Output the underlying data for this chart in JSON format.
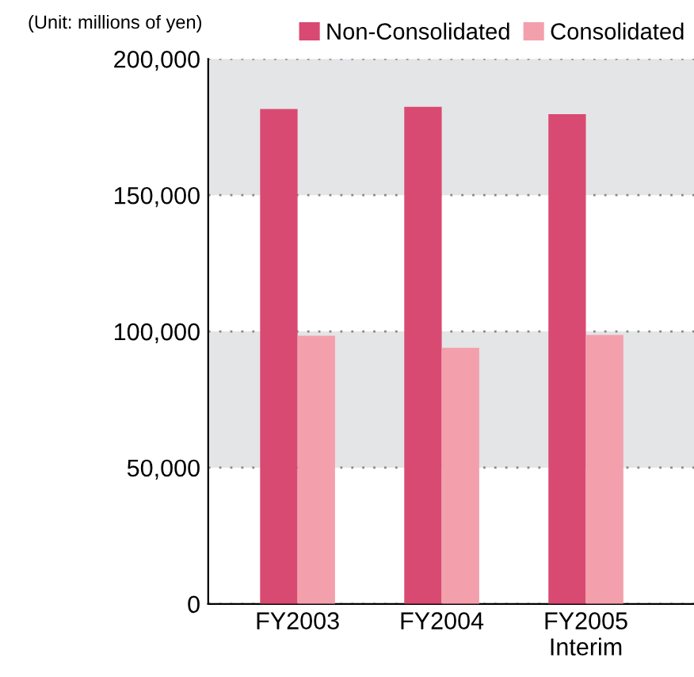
{
  "chart_data": {
    "type": "bar",
    "categories": [
      "FY2003",
      "FY2004",
      "FY2005\nInterim"
    ],
    "series": [
      {
        "name": "Non-Consolidated",
        "color": "#d94a72",
        "values": [
          181600,
          182400,
          179700
        ]
      },
      {
        "name": "Consolidated",
        "color": "#f3a0ac",
        "values": [
          98400,
          94000,
          98700
        ]
      }
    ],
    "ylim": [
      0,
      200000
    ],
    "yticks": [
      {
        "value": 0,
        "label": "0"
      },
      {
        "value": 50000,
        "label": "50,000"
      },
      {
        "value": 100000,
        "label": "100,000"
      },
      {
        "value": 150000,
        "label": "150,000"
      },
      {
        "value": 200000,
        "label": "200,000"
      }
    ],
    "grid": "y",
    "legend": "top right",
    "bands": [
      {
        "axis": "y",
        "from": 50000,
        "to": 100000,
        "color": "#e4e5e7"
      },
      {
        "axis": "y",
        "from": 150000,
        "to": 200000,
        "color": "#e4e5e7"
      }
    ],
    "annotations": [
      "(Unit: millions of yen)"
    ]
  }
}
